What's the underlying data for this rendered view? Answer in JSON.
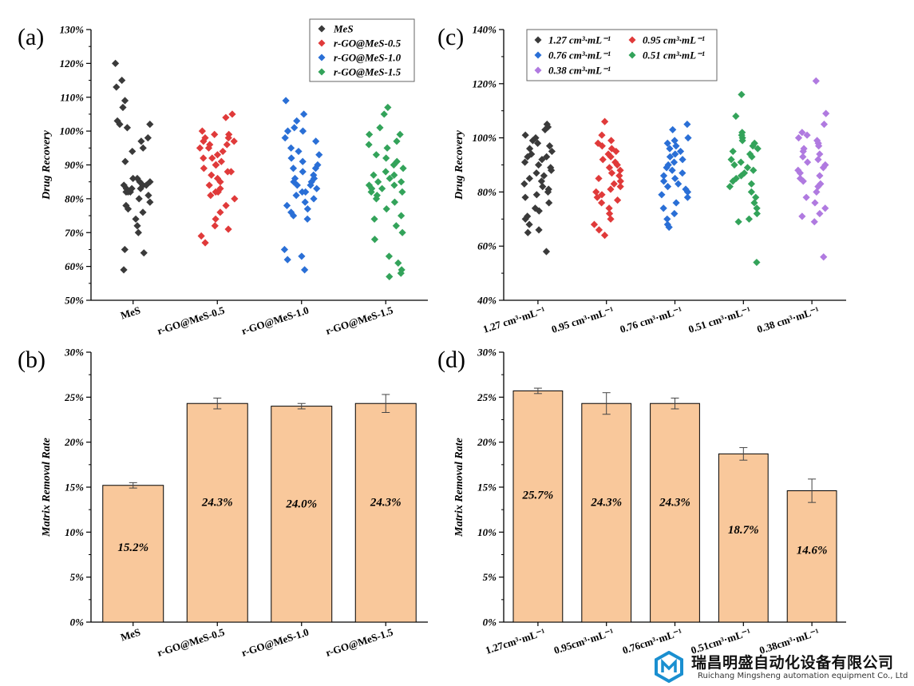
{
  "panels": {
    "a": "(a)",
    "b": "(b)",
    "c": "(c)",
    "d": "(d)"
  },
  "logo": {
    "name_cn": "瑞昌明盛自动化设备有限公司",
    "name_en": "Ruichang Mingsheng automation equipment Co., Ltd",
    "color": "#1a8fd0"
  },
  "chart_data": [
    {
      "id": "a",
      "type": "scatter",
      "ylabel": "Drug Recovery",
      "ylim": [
        0.5,
        1.3
      ],
      "ytick_labels": [
        "50%",
        "60%",
        "70%",
        "80%",
        "90%",
        "100%",
        "110%",
        "120%",
        "130%"
      ],
      "categories": [
        "MeS",
        "r-GO@MeS-0.5",
        "r-GO@MeS-1.0",
        "r-GO@MeS-1.5"
      ],
      "legend_placement": "top-right",
      "series": [
        {
          "name": "MeS",
          "color": "#3a3a3a",
          "values": [
            1.2,
            1.15,
            1.13,
            1.09,
            1.07,
            1.03,
            1.02,
            1.02,
            1.01,
            0.98,
            0.97,
            0.95,
            0.94,
            0.91,
            0.86,
            0.86,
            0.85,
            0.85,
            0.84,
            0.84,
            0.84,
            0.83,
            0.83,
            0.83,
            0.82,
            0.82,
            0.82,
            0.81,
            0.8,
            0.79,
            0.78,
            0.77,
            0.76,
            0.74,
            0.72,
            0.7,
            0.65,
            0.64,
            0.59
          ]
        },
        {
          "name": "r-GO@MeS-0.5",
          "color": "#e03a3a",
          "values": [
            1.05,
            1.04,
            1.0,
            0.99,
            0.99,
            0.98,
            0.98,
            0.97,
            0.97,
            0.96,
            0.96,
            0.95,
            0.95,
            0.94,
            0.93,
            0.92,
            0.92,
            0.91,
            0.9,
            0.9,
            0.89,
            0.88,
            0.88,
            0.87,
            0.86,
            0.85,
            0.84,
            0.83,
            0.82,
            0.82,
            0.81,
            0.8,
            0.78,
            0.76,
            0.74,
            0.72,
            0.71,
            0.69,
            0.67
          ]
        },
        {
          "name": "r-GO@MeS-1.0",
          "color": "#2a6fd6",
          "values": [
            1.09,
            1.05,
            1.03,
            1.01,
            1.0,
            1.0,
            0.98,
            0.97,
            0.95,
            0.94,
            0.93,
            0.92,
            0.91,
            0.9,
            0.89,
            0.89,
            0.88,
            0.87,
            0.86,
            0.86,
            0.85,
            0.85,
            0.84,
            0.84,
            0.83,
            0.82,
            0.82,
            0.81,
            0.8,
            0.79,
            0.78,
            0.77,
            0.76,
            0.75,
            0.74,
            0.65,
            0.63,
            0.62,
            0.59
          ]
        },
        {
          "name": "r-GO@MeS-1.5",
          "color": "#33a35a",
          "values": [
            1.07,
            1.05,
            1.01,
            0.99,
            0.99,
            0.97,
            0.96,
            0.95,
            0.93,
            0.92,
            0.91,
            0.9,
            0.89,
            0.88,
            0.87,
            0.87,
            0.86,
            0.85,
            0.85,
            0.84,
            0.84,
            0.83,
            0.83,
            0.82,
            0.82,
            0.81,
            0.8,
            0.79,
            0.77,
            0.75,
            0.74,
            0.72,
            0.7,
            0.68,
            0.63,
            0.61,
            0.59,
            0.58,
            0.57
          ]
        }
      ]
    },
    {
      "id": "b",
      "type": "bar",
      "ylabel": "Matrix Removal Rate",
      "ylim": [
        0,
        0.3
      ],
      "ytick_labels": [
        "0%",
        "5%",
        "10%",
        "15%",
        "20%",
        "25%",
        "30%"
      ],
      "categories": [
        "MeS",
        "r-GO@MeS-0.5",
        "r-GO@MeS-1.0",
        "r-GO@MeS-1.5"
      ],
      "values": [
        0.152,
        0.243,
        0.24,
        0.243
      ],
      "errors": [
        0.003,
        0.006,
        0.003,
        0.01
      ],
      "data_labels": [
        "15.2%",
        "24.3%",
        "24.0%",
        "24.3%"
      ],
      "bar_color": "#f9c89b",
      "edge_color": "#000000"
    },
    {
      "id": "c",
      "type": "scatter",
      "ylabel": "Drug Recovery",
      "ylim": [
        0.4,
        1.4
      ],
      "ytick_labels": [
        "40%",
        "60%",
        "80%",
        "100%",
        "120%",
        "140%"
      ],
      "categories": [
        "1.27 cm³·mL⁻¹",
        "0.95 cm³·mL⁻¹",
        "0.76 cm³·mL⁻¹",
        "0.51 cm³·mL⁻¹",
        "0.38 cm³·mL⁻¹"
      ],
      "legend_placement": "top-left",
      "series": [
        {
          "name": "1.27 cm³·mL⁻¹",
          "color": "#3a3a3a",
          "values": [
            1.05,
            1.04,
            1.03,
            1.01,
            1.0,
            0.99,
            0.98,
            0.97,
            0.96,
            0.95,
            0.94,
            0.93,
            0.93,
            0.92,
            0.91,
            0.9,
            0.89,
            0.88,
            0.87,
            0.86,
            0.85,
            0.84,
            0.83,
            0.82,
            0.81,
            0.8,
            0.79,
            0.78,
            0.76,
            0.74,
            0.73,
            0.71,
            0.7,
            0.68,
            0.66,
            0.65,
            0.58
          ]
        },
        {
          "name": "0.95 cm³·mL⁻¹",
          "color": "#e03a3a",
          "values": [
            1.06,
            1.01,
            0.99,
            0.98,
            0.97,
            0.96,
            0.95,
            0.94,
            0.93,
            0.92,
            0.91,
            0.9,
            0.89,
            0.88,
            0.87,
            0.86,
            0.85,
            0.84,
            0.83,
            0.82,
            0.81,
            0.8,
            0.79,
            0.78,
            0.77,
            0.76,
            0.74,
            0.72,
            0.7,
            0.68,
            0.66,
            0.64
          ]
        },
        {
          "name": "0.76 cm³·mL⁻¹",
          "color": "#2a6fd6",
          "values": [
            1.05,
            1.03,
            1.0,
            0.99,
            0.98,
            0.97,
            0.96,
            0.95,
            0.94,
            0.93,
            0.92,
            0.91,
            0.9,
            0.89,
            0.88,
            0.87,
            0.86,
            0.85,
            0.84,
            0.83,
            0.82,
            0.81,
            0.8,
            0.79,
            0.78,
            0.76,
            0.74,
            0.72,
            0.7,
            0.68,
            0.67
          ]
        },
        {
          "name": "0.51 cm³·mL⁻¹",
          "color": "#33a35a",
          "values": [
            1.16,
            1.08,
            1.02,
            1.01,
            1.0,
            0.99,
            0.98,
            0.97,
            0.96,
            0.95,
            0.94,
            0.93,
            0.92,
            0.91,
            0.9,
            0.89,
            0.88,
            0.87,
            0.86,
            0.85,
            0.84,
            0.83,
            0.82,
            0.8,
            0.78,
            0.76,
            0.74,
            0.72,
            0.7,
            0.69,
            0.54
          ]
        },
        {
          "name": "0.38 cm³·mL⁻¹",
          "color": "#b07ae0",
          "values": [
            1.21,
            1.09,
            1.05,
            1.02,
            1.01,
            1.0,
            0.99,
            0.98,
            0.97,
            0.96,
            0.95,
            0.94,
            0.93,
            0.92,
            0.91,
            0.9,
            0.89,
            0.88,
            0.87,
            0.86,
            0.85,
            0.84,
            0.83,
            0.82,
            0.8,
            0.78,
            0.76,
            0.74,
            0.72,
            0.71,
            0.69,
            0.56
          ]
        }
      ]
    },
    {
      "id": "d",
      "type": "bar",
      "ylabel": "Matrix Removal Rate",
      "ylim": [
        0,
        0.3
      ],
      "ytick_labels": [
        "0%",
        "5%",
        "10%",
        "15%",
        "20%",
        "25%",
        "30%"
      ],
      "categories": [
        "1.27cm³·mL⁻¹",
        "0.95cm³·mL⁻¹",
        "0.76cm³·mL⁻¹",
        "0.51cm³·mL⁻¹",
        "0.38cm³·mL⁻¹"
      ],
      "values": [
        0.257,
        0.243,
        0.243,
        0.187,
        0.146
      ],
      "errors": [
        0.003,
        0.012,
        0.006,
        0.007,
        0.013
      ],
      "data_labels": [
        "25.7%",
        "24.3%",
        "24.3%",
        "18.7%",
        "14.6%"
      ],
      "bar_color": "#f9c89b",
      "edge_color": "#000000"
    }
  ]
}
